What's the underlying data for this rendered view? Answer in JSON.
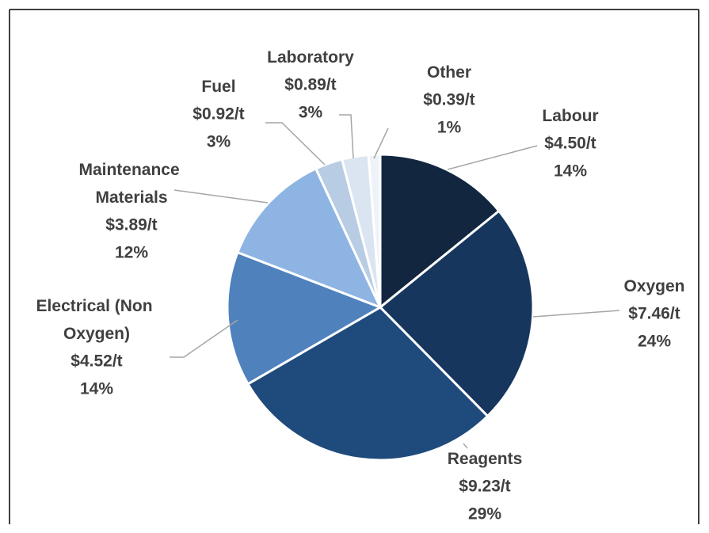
{
  "chart_data": {
    "type": "pie",
    "categories": [
      "Labour",
      "Oxygen",
      "Reagents",
      "Electrical (Non Oxygen)",
      "Maintenance Materials",
      "Fuel",
      "Laboratory",
      "Other"
    ],
    "values": [
      4.5,
      7.46,
      9.23,
      4.52,
      3.89,
      0.92,
      0.89,
      0.39
    ],
    "value_labels": [
      "$4.50/t",
      "$7.46/t",
      "$9.23/t",
      "$4.52/t",
      "$3.89/t",
      "$0.92/t",
      "$0.89/t",
      "$0.39/t"
    ],
    "percent_labels": [
      "14%",
      "24%",
      "29%",
      "14%",
      "12%",
      "3%",
      "3%",
      "1%"
    ],
    "colors": [
      "#12263f",
      "#17365d",
      "#1f4a7c",
      "#4f81bd",
      "#8eb4e3",
      "#b8cce4",
      "#dbe5f1",
      "#eef3f9"
    ]
  }
}
